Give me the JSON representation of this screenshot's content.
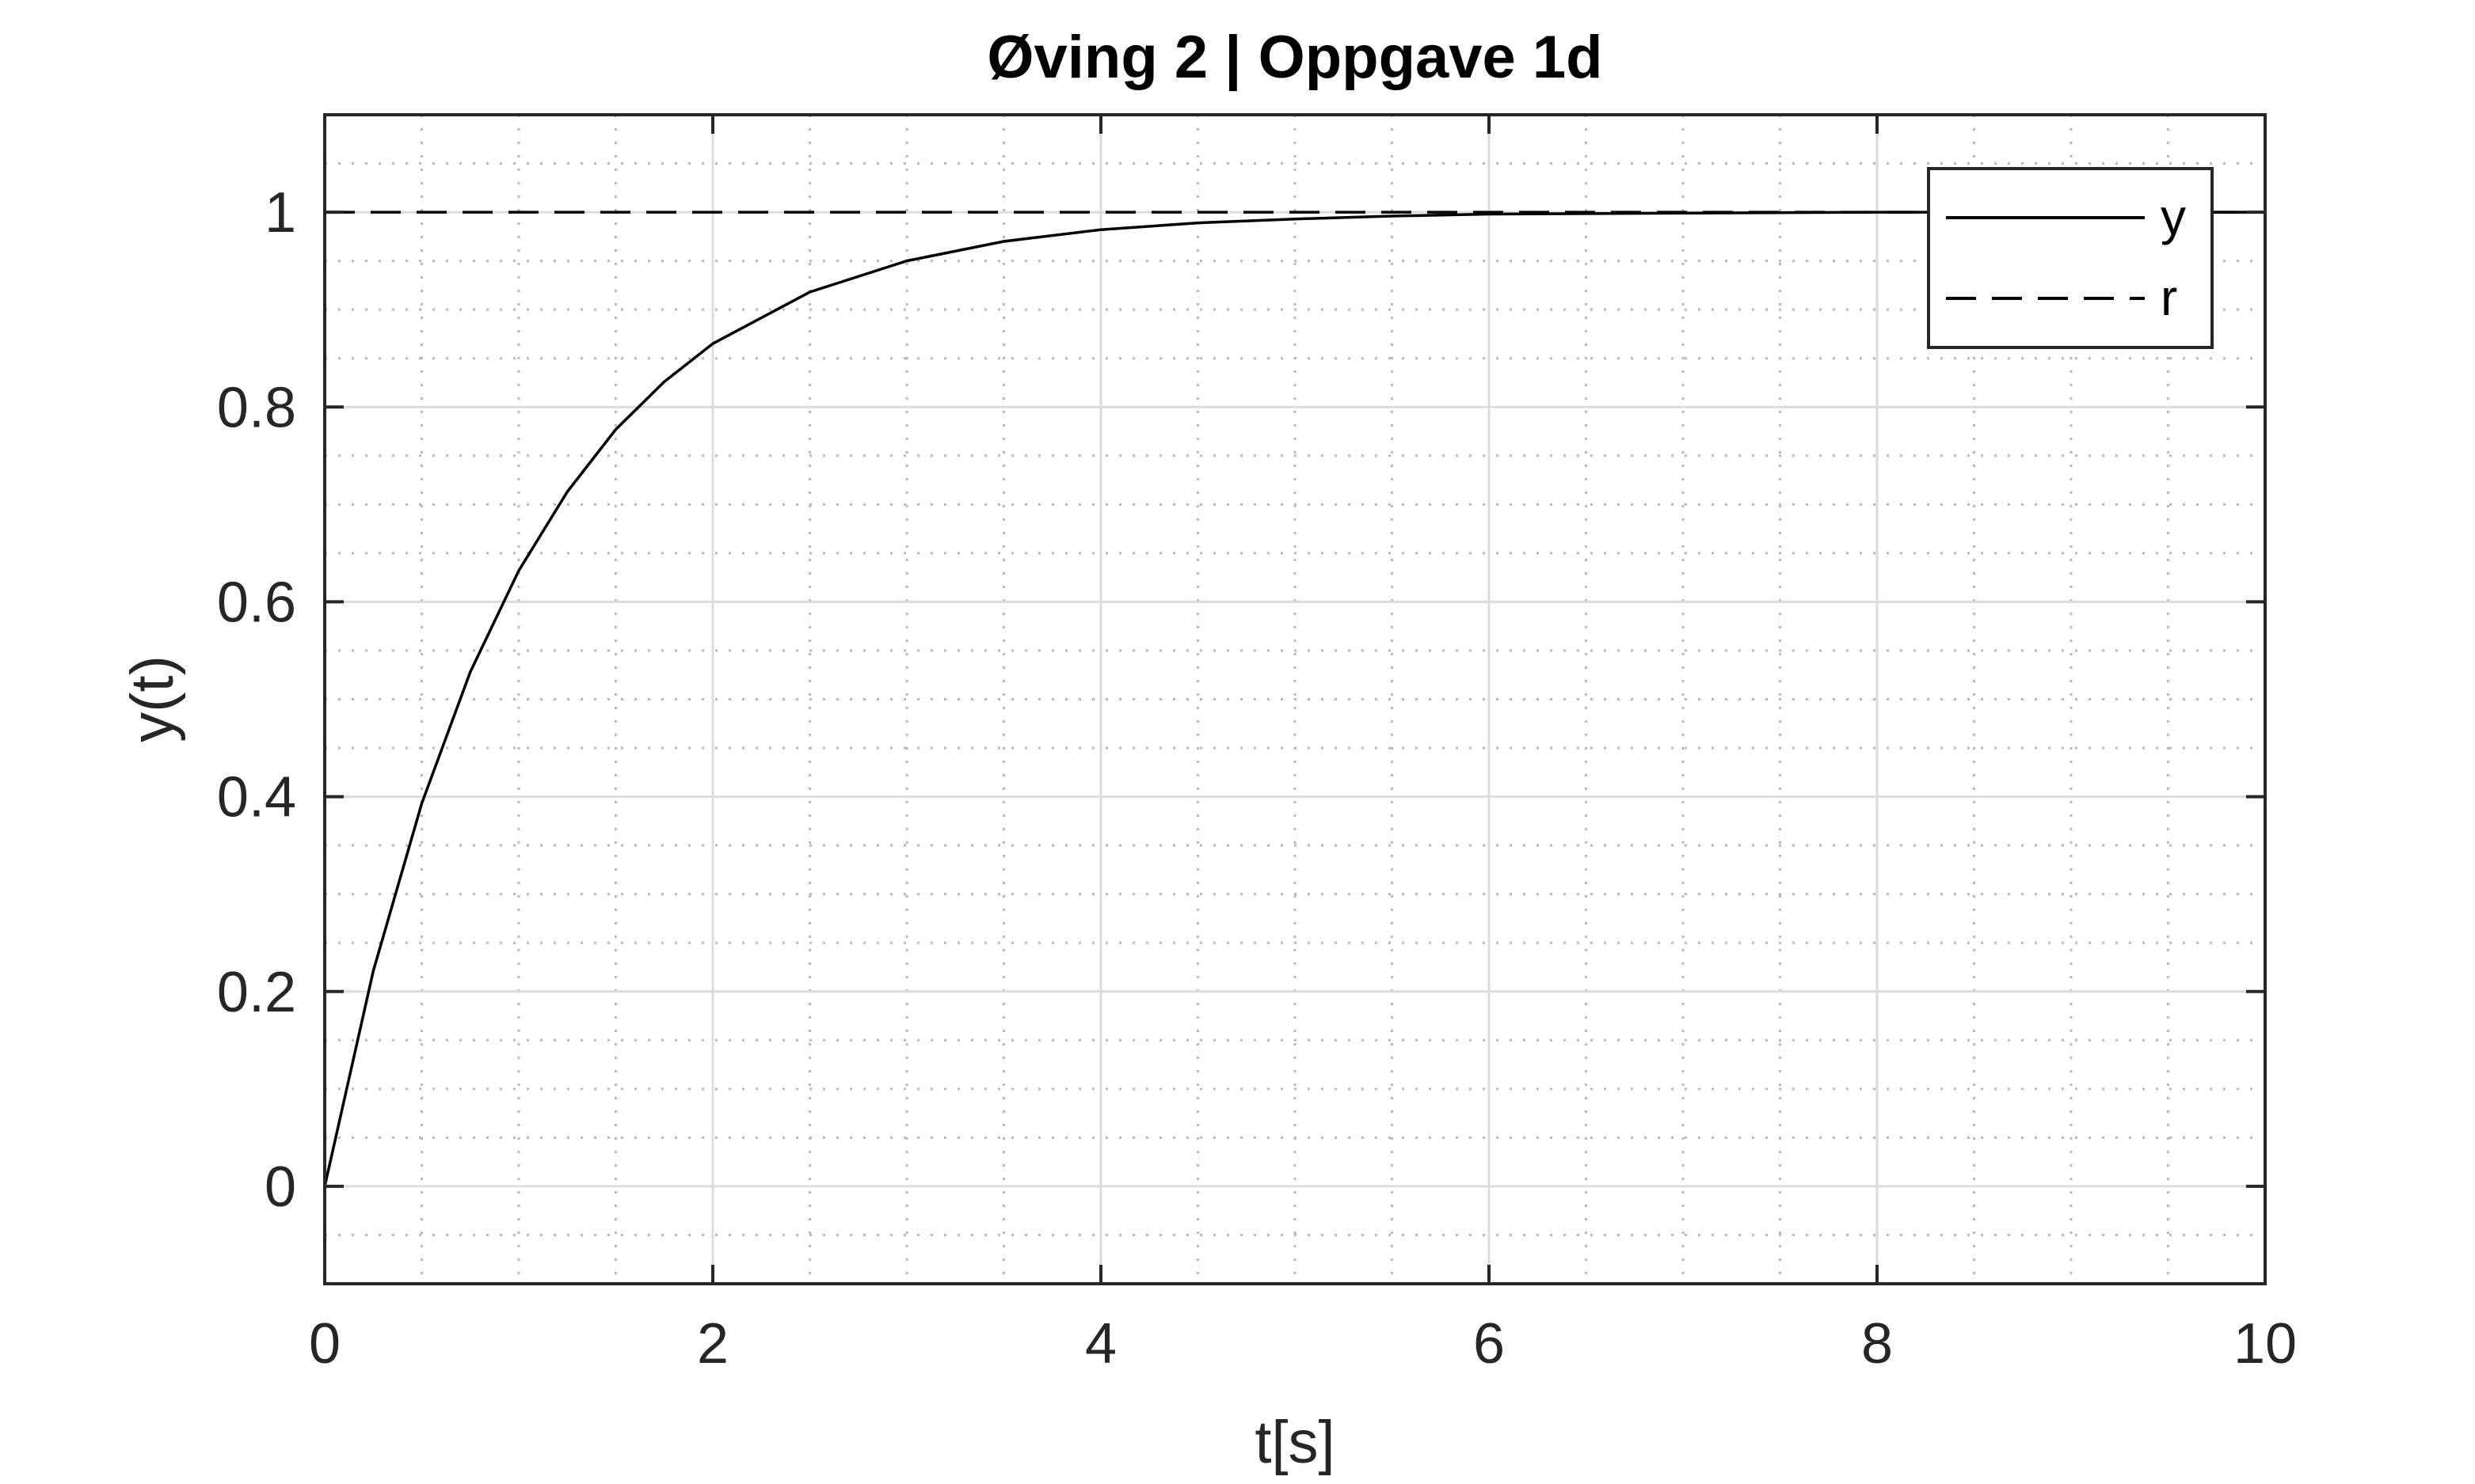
{
  "chart_data": {
    "type": "line",
    "title": "Øving 2 | Oppgave 1d",
    "xlabel": "t[s]",
    "ylabel": "y(t)",
    "xlim": [
      0,
      10
    ],
    "ylim": [
      -0.1,
      1.1
    ],
    "xticks": [
      0,
      2,
      4,
      6,
      8,
      10
    ],
    "yticks": [
      0,
      0.2,
      0.4,
      0.6,
      0.8,
      1
    ],
    "xtick_labels": [
      "0",
      "2",
      "4",
      "6",
      "8",
      "10"
    ],
    "ytick_labels": [
      "0",
      "0.2",
      "0.4",
      "0.6",
      "0.8",
      "1"
    ],
    "grid": true,
    "minor_grid": true,
    "legend_position": "top-right",
    "series": [
      {
        "name": "y",
        "style": "solid",
        "color": "#000000",
        "x": [
          0,
          0.25,
          0.5,
          0.75,
          1,
          1.25,
          1.5,
          1.75,
          2,
          2.5,
          3,
          3.5,
          4,
          4.5,
          5,
          5.5,
          6,
          7,
          8,
          9,
          10
        ],
        "y": [
          0,
          0.221,
          0.393,
          0.528,
          0.632,
          0.713,
          0.777,
          0.826,
          0.865,
          0.918,
          0.95,
          0.97,
          0.982,
          0.989,
          0.993,
          0.996,
          0.998,
          0.999,
          1.0,
          1.0,
          1.0
        ]
      },
      {
        "name": "r",
        "style": "dashed",
        "color": "#000000",
        "x": [
          0,
          10
        ],
        "y": [
          1,
          1
        ]
      }
    ]
  }
}
